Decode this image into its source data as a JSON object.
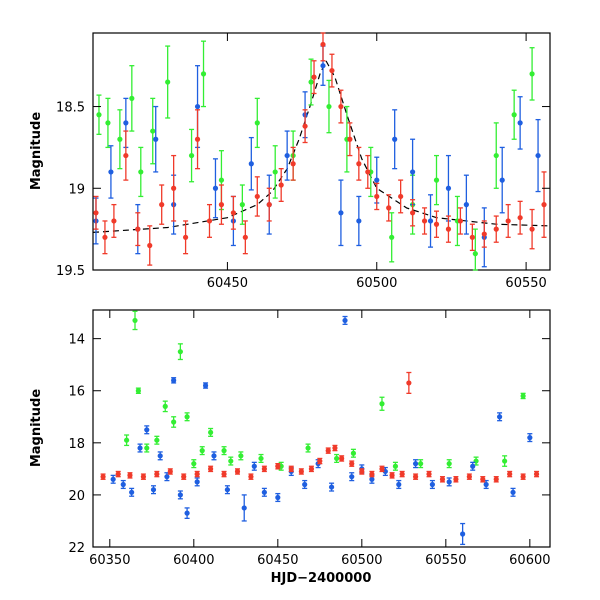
{
  "chart_data": [
    {
      "type": "scatter",
      "panel": "top",
      "title": "",
      "xlabel": "",
      "ylabel": "Magnitude",
      "xlim": [
        60405,
        60558
      ],
      "ylim": [
        19.5,
        18.05
      ],
      "y_inverted": true,
      "x_ticks": [
        60450,
        60500,
        60550
      ],
      "y_ticks": [
        18.5,
        19,
        19.5
      ],
      "x_tick_labels": [
        "60450",
        "60500",
        "60550"
      ],
      "y_tick_labels": [
        "18.5",
        "19",
        "19.5"
      ],
      "error_bars": true,
      "series_colors": {
        "green": "#33ee33",
        "blue": "#1f5fe0",
        "red": "#f03a2a"
      },
      "model_curve": {
        "style": "dashed",
        "color": "#000000",
        "x": [
          60405,
          60430,
          60450,
          60460,
          60465,
          60470,
          60474,
          60478,
          60481,
          60483,
          60486,
          60490,
          60495,
          60500,
          60510,
          60520,
          60540,
          60558
        ],
        "y": [
          19.27,
          19.24,
          19.18,
          19.1,
          19.02,
          18.88,
          18.7,
          18.48,
          18.3,
          18.22,
          18.32,
          18.55,
          18.82,
          19.0,
          19.12,
          19.18,
          19.22,
          19.23
        ]
      },
      "series": [
        {
          "color": "green",
          "x": [
            60407,
            60410,
            60414,
            60418,
            60421,
            60425,
            60430,
            60438,
            60442,
            60448,
            60455,
            60460,
            60466,
            60472,
            60478,
            60484,
            60490,
            60498,
            60505,
            60512,
            60520,
            60527,
            60533,
            60540,
            60546,
            60552
          ],
          "y": [
            18.55,
            18.6,
            18.7,
            18.45,
            18.9,
            18.65,
            18.35,
            18.8,
            18.3,
            18.95,
            19.1,
            18.6,
            18.9,
            18.8,
            18.35,
            18.5,
            18.7,
            18.9,
            19.3,
            19.1,
            18.95,
            19.2,
            19.4,
            18.8,
            18.55,
            18.3
          ],
          "err": [
            0.12,
            0.15,
            0.18,
            0.2,
            0.15,
            0.2,
            0.22,
            0.16,
            0.2,
            0.18,
            0.12,
            0.15,
            0.16,
            0.15,
            0.14,
            0.16,
            0.2,
            0.15,
            0.15,
            0.18,
            0.15,
            0.15,
            0.15,
            0.2,
            0.15,
            0.16
          ]
        },
        {
          "color": "blue",
          "x": [
            60406,
            60411,
            60416,
            60420,
            60426,
            60432,
            60440,
            60446,
            60452,
            60458,
            60464,
            60470,
            60476,
            60482,
            60488,
            60494,
            60500,
            60506,
            60512,
            60518,
            60524,
            60530,
            60536,
            60542,
            60548,
            60554
          ],
          "y": [
            19.2,
            18.9,
            18.6,
            19.25,
            18.7,
            19.1,
            18.5,
            19.0,
            19.2,
            18.85,
            19.1,
            18.8,
            18.55,
            18.25,
            19.15,
            19.2,
            18.95,
            18.7,
            18.9,
            19.2,
            19.0,
            19.1,
            19.3,
            18.95,
            18.6,
            18.8
          ],
          "err": [
            0.14,
            0.16,
            0.15,
            0.15,
            0.2,
            0.18,
            0.25,
            0.18,
            0.15,
            0.16,
            0.18,
            0.15,
            0.14,
            0.12,
            0.2,
            0.15,
            0.14,
            0.18,
            0.2,
            0.16,
            0.2,
            0.18,
            0.18,
            0.2,
            0.16,
            0.22
          ]
        },
        {
          "color": "red",
          "x": [
            60406,
            60409,
            60412,
            60416,
            60420,
            60424,
            60428,
            60432,
            60436,
            60440,
            60444,
            60448,
            60452,
            60456,
            60460,
            60464,
            60468,
            60472,
            60476,
            60479,
            60482,
            60485,
            60488,
            60491,
            60494,
            60497,
            60500,
            60504,
            60508,
            60512,
            60516,
            60520,
            60524,
            60528,
            60532,
            60536,
            60540,
            60544,
            60548,
            60552,
            60556
          ],
          "y": [
            19.15,
            19.3,
            19.2,
            18.8,
            19.25,
            19.35,
            19.1,
            19.0,
            19.3,
            18.7,
            19.2,
            19.1,
            19.15,
            19.3,
            19.05,
            19.1,
            18.98,
            18.85,
            18.62,
            18.32,
            18.12,
            18.28,
            18.5,
            18.7,
            18.85,
            18.9,
            19.05,
            19.12,
            19.05,
            19.15,
            19.2,
            19.22,
            19.25,
            19.2,
            19.3,
            19.28,
            19.25,
            19.2,
            19.18,
            19.25,
            19.1
          ],
          "err": [
            0.1,
            0.1,
            0.1,
            0.15,
            0.1,
            0.12,
            0.12,
            0.2,
            0.1,
            0.18,
            0.1,
            0.12,
            0.1,
            0.1,
            0.12,
            0.1,
            0.1,
            0.1,
            0.1,
            0.1,
            0.1,
            0.1,
            0.1,
            0.1,
            0.1,
            0.1,
            0.08,
            0.08,
            0.1,
            0.08,
            0.08,
            0.08,
            0.08,
            0.08,
            0.08,
            0.08,
            0.08,
            0.1,
            0.1,
            0.12,
            0.2
          ]
        }
      ]
    },
    {
      "type": "scatter",
      "panel": "bottom",
      "title": "",
      "xlabel": "HJD−2400000",
      "ylabel": "Magnitude",
      "xlim": [
        60340,
        60612
      ],
      "ylim": [
        22.0,
        12.9
      ],
      "y_inverted": true,
      "x_ticks": [
        60350,
        60400,
        60450,
        60500,
        60550,
        60600
      ],
      "y_ticks": [
        14,
        16,
        18,
        20,
        22
      ],
      "x_tick_labels": [
        "60350",
        "60400",
        "60450",
        "60500",
        "60550",
        "60600"
      ],
      "y_tick_labels": [
        "14",
        "16",
        "18",
        "20",
        "22"
      ],
      "error_bars": true,
      "series": [
        {
          "color": "green",
          "x": [
            60360,
            60365,
            60367,
            60372,
            60378,
            60383,
            60388,
            60392,
            60396,
            60400,
            60405,
            60410,
            60418,
            60422,
            60428,
            60440,
            60452,
            60468,
            60485,
            60495,
            60512,
            60520,
            60535,
            60552,
            60568,
            60585,
            60596
          ],
          "y": [
            17.9,
            13.3,
            16.0,
            18.2,
            17.9,
            16.6,
            17.2,
            14.5,
            17.0,
            18.8,
            18.3,
            17.6,
            18.3,
            18.7,
            18.5,
            18.6,
            18.9,
            18.2,
            18.6,
            18.4,
            16.5,
            18.9,
            18.8,
            18.8,
            18.7,
            18.7,
            16.2
          ],
          "err": [
            0.2,
            0.35,
            0.1,
            0.15,
            0.15,
            0.2,
            0.2,
            0.3,
            0.15,
            0.15,
            0.15,
            0.15,
            0.15,
            0.15,
            0.15,
            0.15,
            0.15,
            0.15,
            0.15,
            0.15,
            0.25,
            0.15,
            0.15,
            0.15,
            0.15,
            0.2,
            0.1
          ]
        },
        {
          "color": "blue",
          "x": [
            60352,
            60358,
            60363,
            60368,
            60372,
            60376,
            60380,
            60384,
            60388,
            60392,
            60396,
            60402,
            60407,
            60412,
            60420,
            60430,
            60436,
            60442,
            60450,
            60458,
            60466,
            60474,
            60482,
            60490,
            60494,
            60500,
            60506,
            60514,
            60522,
            60532,
            60542,
            60552,
            60560,
            60566,
            60574,
            60582,
            60590,
            60600
          ],
          "y": [
            19.4,
            19.6,
            19.9,
            18.2,
            17.5,
            19.8,
            18.5,
            19.3,
            15.6,
            20.0,
            20.7,
            19.5,
            15.8,
            18.5,
            19.8,
            20.5,
            18.9,
            19.9,
            20.1,
            19.1,
            19.6,
            18.8,
            19.7,
            13.3,
            19.3,
            19.0,
            19.4,
            19.1,
            19.6,
            18.8,
            19.6,
            19.5,
            21.5,
            18.9,
            19.6,
            17.0,
            19.9,
            17.8
          ],
          "err": [
            0.15,
            0.15,
            0.15,
            0.15,
            0.15,
            0.15,
            0.15,
            0.15,
            0.1,
            0.15,
            0.2,
            0.15,
            0.1,
            0.15,
            0.15,
            0.5,
            0.15,
            0.15,
            0.15,
            0.15,
            0.15,
            0.15,
            0.15,
            0.15,
            0.15,
            0.15,
            0.15,
            0.15,
            0.15,
            0.15,
            0.15,
            0.15,
            0.4,
            0.15,
            0.15,
            0.15,
            0.15,
            0.15
          ]
        },
        {
          "color": "red",
          "x": [
            60346,
            60355,
            60362,
            60370,
            60378,
            60386,
            60394,
            60402,
            60410,
            60418,
            60426,
            60434,
            60442,
            60450,
            60458,
            60464,
            60470,
            60475,
            60480,
            60484,
            60488,
            60494,
            60500,
            60506,
            60512,
            60518,
            60524,
            60528,
            60532,
            60540,
            60548,
            60556,
            60564,
            60572,
            60580,
            60588,
            60596,
            60604
          ],
          "y": [
            19.3,
            19.2,
            19.25,
            19.3,
            19.2,
            19.1,
            19.3,
            19.2,
            19.0,
            19.2,
            19.1,
            19.3,
            19.0,
            18.9,
            19.0,
            19.1,
            19.0,
            18.7,
            18.3,
            18.2,
            18.6,
            18.8,
            19.1,
            19.2,
            19.0,
            19.25,
            19.2,
            15.7,
            19.3,
            19.2,
            19.4,
            19.4,
            19.3,
            19.4,
            19.4,
            19.2,
            19.3,
            19.2
          ],
          "err": [
            0.1,
            0.1,
            0.1,
            0.1,
            0.1,
            0.1,
            0.1,
            0.1,
            0.1,
            0.1,
            0.1,
            0.1,
            0.1,
            0.1,
            0.1,
            0.1,
            0.1,
            0.1,
            0.1,
            0.1,
            0.1,
            0.1,
            0.1,
            0.1,
            0.1,
            0.1,
            0.1,
            0.4,
            0.1,
            0.1,
            0.1,
            0.1,
            0.1,
            0.1,
            0.1,
            0.1,
            0.1,
            0.1
          ]
        }
      ]
    }
  ]
}
